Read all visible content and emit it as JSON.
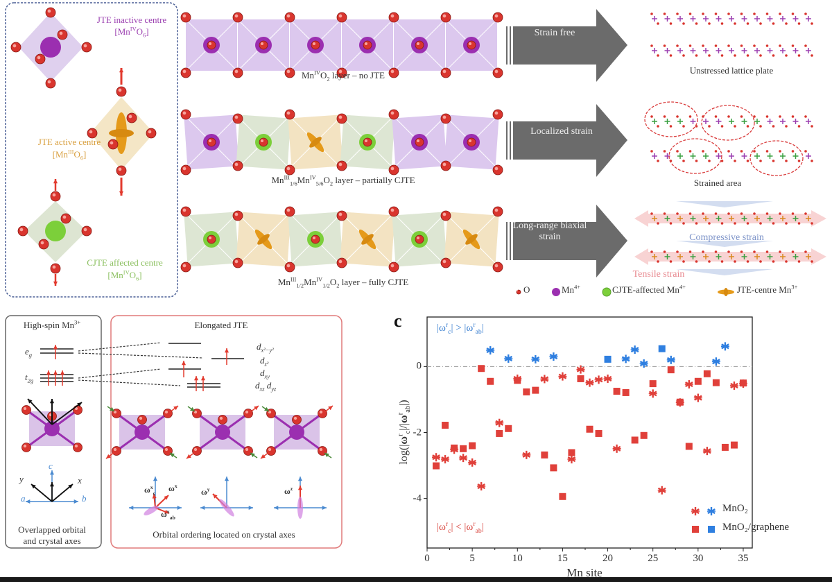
{
  "colors": {
    "oxygen": "#d9352e",
    "mn4": "#9b2fb0",
    "cjte": "#7ccf3a",
    "jte": "#e59a1a",
    "red_series": "#e0403a",
    "blue_series": "#2f7fe0",
    "arrow": "#6b6b6b",
    "inactive_text": "#9b3fb0",
    "active_text": "#d9a040",
    "cjte_text": "#8cc060",
    "compressive": "#7d93c8",
    "tensile": "#e88a90"
  },
  "panel_a": {
    "legend_box": {
      "inactive": {
        "title": "JTE inactive centre",
        "formula": [
          [
            "[Mn",
            ""
          ],
          [
            "IV",
            "sup"
          ],
          [
            "O",
            ""
          ],
          [
            "6",
            "sub"
          ],
          [
            "]",
            ""
          ]
        ]
      },
      "active": {
        "title": "JTE active centre",
        "formula": [
          [
            "[Mn",
            ""
          ],
          [
            "III",
            "sup"
          ],
          [
            "O",
            ""
          ],
          [
            "6",
            "sub"
          ],
          [
            "]",
            ""
          ]
        ]
      },
      "cjte": {
        "title": "CJTE affected centre",
        "formula": [
          [
            "[Mn",
            ""
          ],
          [
            "IV",
            "sup"
          ],
          [
            "O",
            ""
          ],
          [
            "6",
            "sub"
          ],
          [
            "]",
            ""
          ]
        ]
      }
    },
    "layers": [
      {
        "caption": [
          [
            "Mn",
            ""
          ],
          [
            "IV",
            "sup"
          ],
          [
            "O",
            ""
          ],
          [
            "2",
            "sub"
          ],
          [
            " layer – no JTE",
            ""
          ]
        ],
        "centres": [
          "mn4",
          "mn4",
          "mn4",
          "mn4",
          "mn4",
          "mn4"
        ],
        "arrow": "Strain free",
        "result": "Unstressed lattice plate"
      },
      {
        "caption": [
          [
            "Mn",
            ""
          ],
          [
            "III",
            "sup"
          ],
          [
            "1/6",
            "sub"
          ],
          [
            "Mn",
            ""
          ],
          [
            "IV",
            "sup"
          ],
          [
            "5/6",
            "sub"
          ],
          [
            "O",
            ""
          ],
          [
            "2",
            "sub"
          ],
          [
            " layer – partially CJTE",
            ""
          ]
        ],
        "centres": [
          "mn4",
          "cjte",
          "jte",
          "cjte",
          "mn4",
          "mn4"
        ],
        "arrow": "Localized strain",
        "result": "Strained area"
      },
      {
        "caption": [
          [
            "Mn",
            ""
          ],
          [
            "III",
            "sup"
          ],
          [
            "1/2",
            "sub"
          ],
          [
            "Mn",
            ""
          ],
          [
            "IV",
            "sup"
          ],
          [
            "1/2",
            "sub"
          ],
          [
            "O",
            ""
          ],
          [
            "2",
            "sub"
          ],
          [
            " layer – fully CJTE",
            ""
          ]
        ],
        "centres": [
          "cjte",
          "jte",
          "cjte",
          "jte",
          "cjte",
          "jte"
        ],
        "arrow": "Long-range biaxial strain",
        "result_compressive": "Compressive strain",
        "result_tensile": "Tensile strain"
      }
    ],
    "species_legend": [
      {
        "icon": "oxygen",
        "label": [
          [
            "O",
            ""
          ]
        ]
      },
      {
        "icon": "mn4",
        "label": [
          [
            "Mn",
            ""
          ],
          [
            "4+",
            "sup"
          ]
        ]
      },
      {
        "icon": "cjte",
        "label": [
          [
            "CJTE-affected Mn",
            ""
          ],
          [
            "4+",
            "sup"
          ]
        ]
      },
      {
        "icon": "jte",
        "label": [
          [
            "JTE-centre Mn",
            ""
          ],
          [
            "3+",
            "sup"
          ]
        ]
      }
    ]
  },
  "panel_b": {
    "left_title": [
      [
        "High-spin Mn",
        ""
      ],
      [
        "3+",
        "sup"
      ]
    ],
    "eg": [
      [
        "e",
        ""
      ],
      [
        "g",
        "sub"
      ]
    ],
    "t2g": [
      [
        "t",
        ""
      ],
      [
        "2g",
        "sub"
      ]
    ],
    "left_caption_1": "Overlapped orbital",
    "left_caption_2": "and crystal axes",
    "right_title": "Elongated JTE",
    "orbitals": [
      [
        [
          "d",
          ""
        ],
        [
          "x²−y²",
          "sub"
        ]
      ],
      [
        [
          "d",
          ""
        ],
        [
          "z²",
          "sub"
        ]
      ],
      [
        [
          "d",
          ""
        ],
        [
          "xy",
          "sub"
        ]
      ],
      [
        [
          "d",
          ""
        ],
        [
          "xz",
          "sub"
        ],
        [
          " d",
          ""
        ],
        [
          "yz",
          "sub"
        ]
      ]
    ],
    "axes": {
      "a": "a",
      "b": "b",
      "c": "c",
      "x": "x",
      "y": "y",
      "z": "z"
    },
    "omega_labels": [
      [
        [
          "ω",
          ""
        ],
        [
          "x",
          "sup"
        ],
        [
          "c",
          "sub"
        ]
      ],
      [
        [
          "ω",
          ""
        ],
        [
          "x",
          "sup"
        ]
      ],
      [
        [
          "ω",
          ""
        ],
        [
          "x",
          "sup"
        ],
        [
          "ab",
          "sub"
        ]
      ],
      [
        [
          "ω",
          ""
        ],
        [
          "y",
          "sup"
        ]
      ],
      [
        [
          "ω",
          ""
        ],
        [
          "z",
          "sup"
        ]
      ]
    ],
    "right_caption": "Orbital ordering located on crystal axes"
  },
  "chart_data": {
    "type": "scatter",
    "panel_label": "c",
    "xlabel": "Mn site",
    "ylabel": [
      [
        "log(|",
        ""
      ],
      [
        "ω",
        "b"
      ],
      [
        "r",
        "sup"
      ],
      [
        "c",
        "sub"
      ],
      [
        "|/|",
        ""
      ],
      [
        "ω",
        "b"
      ],
      [
        "r",
        "sup"
      ],
      [
        "ab",
        "sub"
      ],
      [
        "|)",
        ""
      ]
    ],
    "xlim": [
      0,
      36
    ],
    "ylim": [
      -5.5,
      1.5
    ],
    "xticks": [
      0,
      5,
      10,
      15,
      20,
      25,
      30,
      35
    ],
    "yticks": [
      0,
      -2,
      -4
    ],
    "reference_line": 0,
    "annotation_top": [
      [
        "|ω",
        ""
      ],
      [
        "r",
        "sup"
      ],
      [
        "c",
        "sub"
      ],
      [
        "| > |ω",
        ""
      ],
      [
        "r",
        "sup"
      ],
      [
        "ab",
        "sub"
      ],
      [
        "|",
        ""
      ]
    ],
    "annotation_bottom": [
      [
        "|ω",
        ""
      ],
      [
        "r",
        "sup"
      ],
      [
        "c",
        "sub"
      ],
      [
        "| < |ω",
        ""
      ],
      [
        "r",
        "sup"
      ],
      [
        "ab",
        "sub"
      ],
      [
        "|",
        ""
      ]
    ],
    "legend_position": "bottom-right",
    "series": [
      {
        "name": "MnO₂",
        "marker": "asterisk",
        "points": [
          [
            1,
            -2.75
          ],
          [
            2,
            -2.81
          ],
          [
            3,
            -2.52
          ],
          [
            4,
            -2.77
          ],
          [
            5,
            -2.91
          ],
          [
            6,
            -3.63
          ],
          [
            7,
            0.49
          ],
          [
            8,
            -1.71
          ],
          [
            9,
            0.24
          ],
          [
            10,
            -0.37
          ],
          [
            11,
            -2.68
          ],
          [
            12,
            0.22
          ],
          [
            13,
            -0.38
          ],
          [
            14,
            0.3
          ],
          [
            15,
            -0.3
          ],
          [
            16,
            -2.81
          ],
          [
            17,
            -0.09
          ],
          [
            18,
            -0.49
          ],
          [
            19,
            -0.4
          ],
          [
            20,
            -0.37
          ],
          [
            21,
            -2.49
          ],
          [
            22,
            0.23
          ],
          [
            23,
            0.51
          ],
          [
            24,
            0.09
          ],
          [
            25,
            -0.82
          ],
          [
            26,
            -3.75
          ],
          [
            27,
            0.2
          ],
          [
            28,
            -1.09
          ],
          [
            29,
            -0.54
          ],
          [
            30,
            -0.95
          ],
          [
            31,
            -2.56
          ],
          [
            32,
            0.15
          ],
          [
            33,
            0.61
          ],
          [
            34,
            -0.58
          ],
          [
            35,
            -0.52
          ]
        ]
      },
      {
        "name": "MnO₂/graphene",
        "marker": "square",
        "points": [
          [
            1,
            -3.01
          ],
          [
            2,
            -1.78
          ],
          [
            3,
            -2.47
          ],
          [
            4,
            -2.49
          ],
          [
            5,
            -2.4
          ],
          [
            6,
            -0.06
          ],
          [
            7,
            -0.45
          ],
          [
            8,
            -2.03
          ],
          [
            9,
            -1.88
          ],
          [
            10,
            -0.42
          ],
          [
            11,
            -0.77
          ],
          [
            12,
            -0.72
          ],
          [
            13,
            -2.68
          ],
          [
            14,
            -3.07
          ],
          [
            15,
            -3.94
          ],
          [
            16,
            -2.61
          ],
          [
            17,
            -0.37
          ],
          [
            18,
            -1.9
          ],
          [
            19,
            -2.03
          ],
          [
            20,
            0.22
          ],
          [
            21,
            -0.75
          ],
          [
            22,
            -0.79
          ],
          [
            23,
            -2.23
          ],
          [
            24,
            -2.09
          ],
          [
            25,
            -0.52
          ],
          [
            26,
            0.54
          ],
          [
            27,
            -0.1
          ],
          [
            28,
            -1.08
          ],
          [
            29,
            -2.42
          ],
          [
            30,
            -0.45
          ],
          [
            31,
            -0.22
          ],
          [
            32,
            -0.49
          ],
          [
            33,
            -2.45
          ],
          [
            34,
            -2.38
          ],
          [
            35,
            -0.5
          ]
        ]
      }
    ],
    "color_rule": "blue when value > 0, red when value < 0"
  }
}
